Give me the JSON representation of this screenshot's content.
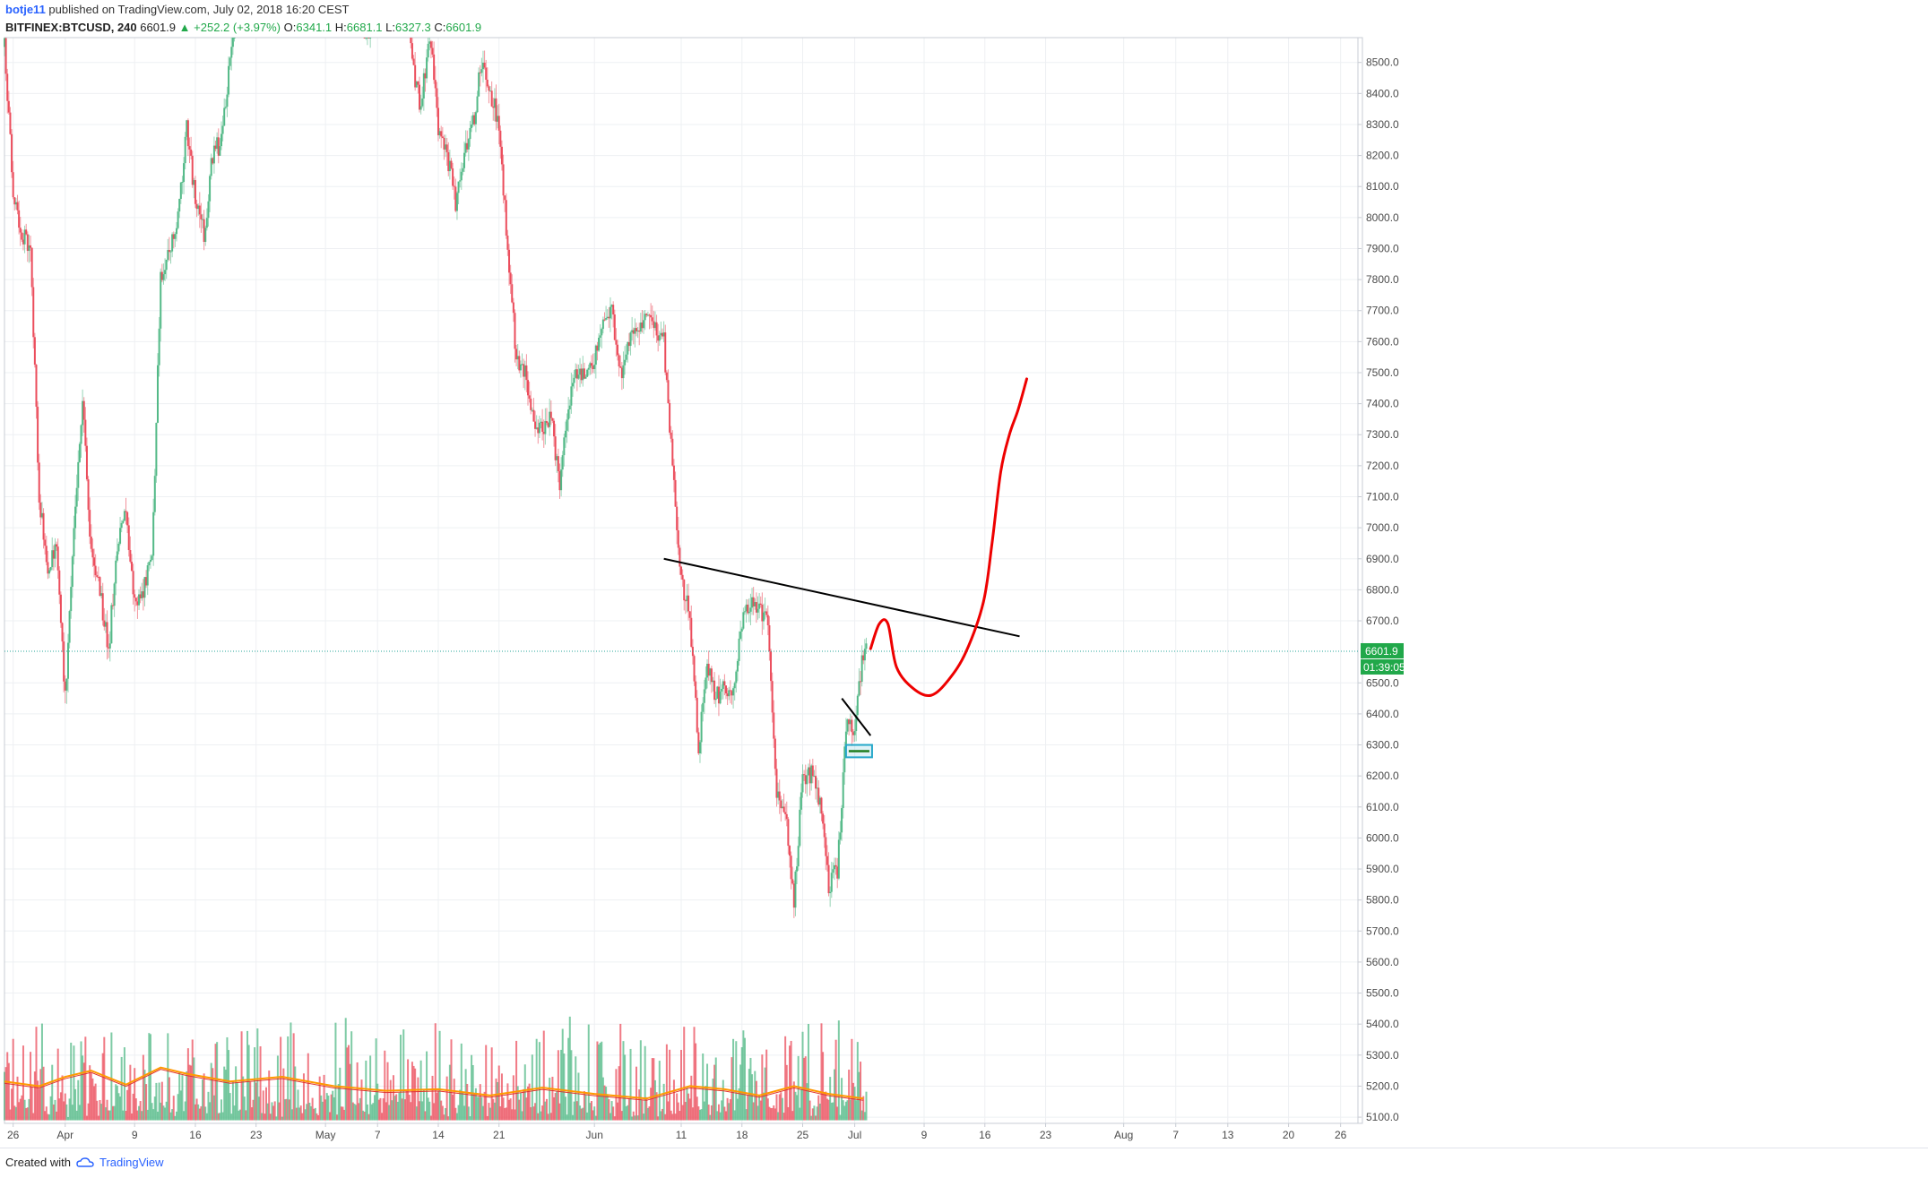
{
  "header": {
    "user": "botje11",
    "published": "published on TradingView.com, July 02, 2018 16:20 CEST",
    "symbol": "BITFINEX:BTCUSD, 240",
    "last": "6601.9",
    "change": "+252.2 (+3.97%)",
    "open_label": "O:",
    "open": "6341.1",
    "high_label": "H:",
    "high": "6681.1",
    "low_label": "L:",
    "low": "6327.3",
    "close_label": "C:",
    "close": "6601.9"
  },
  "footer": {
    "created_with": "Created with",
    "brand": "TradingView"
  },
  "colors": {
    "up": "#53b987",
    "down": "#eb4d5c",
    "grid": "#eef0f3",
    "axis_text": "#4a4a4a",
    "price_line": "#26a69a",
    "trend": "#000000",
    "projection": "#ee0000",
    "ma_orange": "#ff9800",
    "ma_red": "#e0342e",
    "box": "#26a7c9"
  },
  "chart_data": {
    "type": "candlestick",
    "price_axis": {
      "ticks": [
        8500,
        8400,
        8300,
        8200,
        8100,
        8000,
        7900,
        7800,
        7700,
        7600,
        7500,
        7400,
        7300,
        7200,
        7100,
        7000,
        6900,
        6800,
        6700,
        6500,
        6400,
        6300,
        6200,
        6100,
        6000,
        5900,
        5800,
        5700,
        5600,
        5500,
        5400,
        5300,
        5200,
        5100
      ],
      "range": [
        5080,
        8580
      ]
    },
    "time_axis": {
      "range": [
        "2018-03-25",
        "2018-08-28"
      ],
      "labels": [
        {
          "date": "2018-03-26",
          "label": "26"
        },
        {
          "date": "2018-04-01",
          "label": "Apr"
        },
        {
          "date": "2018-04-09",
          "label": "9"
        },
        {
          "date": "2018-04-16",
          "label": "16"
        },
        {
          "date": "2018-04-23",
          "label": "23"
        },
        {
          "date": "2018-05-01",
          "label": "May"
        },
        {
          "date": "2018-05-07",
          "label": "7"
        },
        {
          "date": "2018-05-14",
          "label": "14"
        },
        {
          "date": "2018-05-21",
          "label": "21"
        },
        {
          "date": "2018-06-01",
          "label": "Jun"
        },
        {
          "date": "2018-06-11",
          "label": "11"
        },
        {
          "date": "2018-06-18",
          "label": "18"
        },
        {
          "date": "2018-06-25",
          "label": "25"
        },
        {
          "date": "2018-07-01",
          "label": "Jul"
        },
        {
          "date": "2018-07-09",
          "label": "9"
        },
        {
          "date": "2018-07-16",
          "label": "16"
        },
        {
          "date": "2018-07-23",
          "label": "23"
        },
        {
          "date": "2018-08-01",
          "label": "Aug"
        },
        {
          "date": "2018-08-07",
          "label": "7"
        },
        {
          "date": "2018-08-13",
          "label": "13"
        },
        {
          "date": "2018-08-20",
          "label": "20"
        },
        {
          "date": "2018-08-26",
          "label": "26"
        }
      ]
    },
    "last_price": {
      "value": 6601.9,
      "label": "6601.9",
      "countdown": "01:39:05"
    },
    "price_path": [
      [
        "2018-03-25",
        8550
      ],
      [
        "2018-03-26",
        8100
      ],
      [
        "2018-03-27",
        7950
      ],
      [
        "2018-03-28",
        7900
      ],
      [
        "2018-03-29",
        7100
      ],
      [
        "2018-03-30",
        6850
      ],
      [
        "2018-03-31",
        6950
      ],
      [
        "2018-04-01",
        6450
      ],
      [
        "2018-04-02",
        7000
      ],
      [
        "2018-04-03",
        7400
      ],
      [
        "2018-04-04",
        6900
      ],
      [
        "2018-04-05",
        6800
      ],
      [
        "2018-04-06",
        6600
      ],
      [
        "2018-04-07",
        6950
      ],
      [
        "2018-04-08",
        7050
      ],
      [
        "2018-04-09",
        6750
      ],
      [
        "2018-04-10",
        6800
      ],
      [
        "2018-04-11",
        6900
      ],
      [
        "2018-04-12",
        7800
      ],
      [
        "2018-04-13",
        7900
      ],
      [
        "2018-04-14",
        8000
      ],
      [
        "2018-04-15",
        8300
      ],
      [
        "2018-04-16",
        8050
      ],
      [
        "2018-04-17",
        7950
      ],
      [
        "2018-04-18",
        8200
      ],
      [
        "2018-04-19",
        8250
      ],
      [
        "2018-04-20",
        8500
      ],
      [
        "2018-04-21",
        8800
      ],
      [
        "2018-05-06",
        8600
      ],
      [
        "2018-05-07",
        9000
      ],
      [
        "2018-05-08",
        8800
      ],
      [
        "2018-05-10",
        8900
      ],
      [
        "2018-05-11",
        8500
      ],
      [
        "2018-05-12",
        8350
      ],
      [
        "2018-05-13",
        8600
      ],
      [
        "2018-05-14",
        8300
      ],
      [
        "2018-05-15",
        8200
      ],
      [
        "2018-05-16",
        8050
      ],
      [
        "2018-05-17",
        8200
      ],
      [
        "2018-05-18",
        8300
      ],
      [
        "2018-05-19",
        8500
      ],
      [
        "2018-05-20",
        8400
      ],
      [
        "2018-05-21",
        8300
      ],
      [
        "2018-05-22",
        7900
      ],
      [
        "2018-05-23",
        7550
      ],
      [
        "2018-05-24",
        7500
      ],
      [
        "2018-05-25",
        7350
      ],
      [
        "2018-05-26",
        7300
      ],
      [
        "2018-05-27",
        7350
      ],
      [
        "2018-05-28",
        7150
      ],
      [
        "2018-05-29",
        7400
      ],
      [
        "2018-05-30",
        7500
      ],
      [
        "2018-05-31",
        7500
      ],
      [
        "2018-06-01",
        7550
      ],
      [
        "2018-06-02",
        7650
      ],
      [
        "2018-06-03",
        7700
      ],
      [
        "2018-06-04",
        7500
      ],
      [
        "2018-06-05",
        7600
      ],
      [
        "2018-06-06",
        7650
      ],
      [
        "2018-06-07",
        7700
      ],
      [
        "2018-06-08",
        7650
      ],
      [
        "2018-06-09",
        7600
      ],
      [
        "2018-06-10",
        7200
      ],
      [
        "2018-06-11",
        6850
      ],
      [
        "2018-06-12",
        6700
      ],
      [
        "2018-06-13",
        6300
      ],
      [
        "2018-06-14",
        6550
      ],
      [
        "2018-06-15",
        6450
      ],
      [
        "2018-06-16",
        6500
      ],
      [
        "2018-06-17",
        6450
      ],
      [
        "2018-06-18",
        6700
      ],
      [
        "2018-06-19",
        6750
      ],
      [
        "2018-06-20",
        6750
      ],
      [
        "2018-06-21",
        6700
      ],
      [
        "2018-06-22",
        6150
      ],
      [
        "2018-06-23",
        6100
      ],
      [
        "2018-06-24",
        5800
      ],
      [
        "2018-06-25",
        6200
      ],
      [
        "2018-06-26",
        6200
      ],
      [
        "2018-06-27",
        6100
      ],
      [
        "2018-06-28",
        5850
      ],
      [
        "2018-06-29",
        5900
      ],
      [
        "2018-06-30",
        6350
      ],
      [
        "2018-07-01",
        6350
      ],
      [
        "2018-07-02",
        6600
      ]
    ],
    "volume_path": [
      5220,
      5300,
      5180,
      5250,
      5200,
      5350,
      5180,
      5230,
      5190,
      5260,
      5170,
      5210,
      5400,
      5240,
      5200,
      5180,
      5220,
      5190,
      5260,
      5210,
      5180,
      5230,
      5170,
      5250,
      5200,
      5190,
      5170,
      5200,
      5180,
      5260,
      5190,
      5230,
      5170,
      5210,
      5180,
      5200,
      5190,
      5170,
      5160,
      5180,
      5170,
      5160,
      5175,
      5165,
      5160,
      5300,
      5180,
      5220,
      5170,
      5250,
      5200,
      5190,
      5180,
      5260,
      5220,
      5190,
      5200,
      5170,
      5160
    ],
    "volume_ma": [
      [
        "2018-03-25",
        5215
      ],
      [
        "2018-03-29",
        5200
      ],
      [
        "2018-04-01",
        5230
      ],
      [
        "2018-04-04",
        5250
      ],
      [
        "2018-04-08",
        5205
      ],
      [
        "2018-04-12",
        5260
      ],
      [
        "2018-04-15",
        5240
      ],
      [
        "2018-04-20",
        5215
      ],
      [
        "2018-04-26",
        5230
      ],
      [
        "2018-05-02",
        5200
      ],
      [
        "2018-05-08",
        5185
      ],
      [
        "2018-05-14",
        5190
      ],
      [
        "2018-05-20",
        5170
      ],
      [
        "2018-05-26",
        5195
      ],
      [
        "2018-06-01",
        5175
      ],
      [
        "2018-06-07",
        5160
      ],
      [
        "2018-06-12",
        5200
      ],
      [
        "2018-06-16",
        5190
      ],
      [
        "2018-06-20",
        5170
      ],
      [
        "2018-06-24",
        5200
      ],
      [
        "2018-06-28",
        5175
      ],
      [
        "2018-07-02",
        5160
      ]
    ],
    "drawings": {
      "trendline": {
        "from": [
          "2018-06-09",
          6900
        ],
        "to": [
          "2018-07-20",
          6650
        ]
      },
      "short_trendline": {
        "from": [
          "2018-06-29",
          6450
        ],
        "to": [
          "2018-07-02",
          6330
        ]
      },
      "box": {
        "from": [
          "2018-06-30",
          6300
        ],
        "to": [
          "2018-07-03",
          6260
        ]
      },
      "projection": [
        [
          "2018-07-02",
          6610
        ],
        [
          "2018-07-03",
          6690
        ],
        [
          "2018-07-04",
          6690
        ],
        [
          "2018-07-05",
          6550
        ],
        [
          "2018-07-07",
          6480
        ],
        [
          "2018-07-09",
          6460
        ],
        [
          "2018-07-11",
          6510
        ],
        [
          "2018-07-13",
          6600
        ],
        [
          "2018-07-15",
          6760
        ],
        [
          "2018-07-16",
          6950
        ],
        [
          "2018-07-17",
          7180
        ],
        [
          "2018-07-18",
          7300
        ],
        [
          "2018-07-19",
          7380
        ],
        [
          "2018-07-20",
          7480
        ]
      ]
    }
  }
}
